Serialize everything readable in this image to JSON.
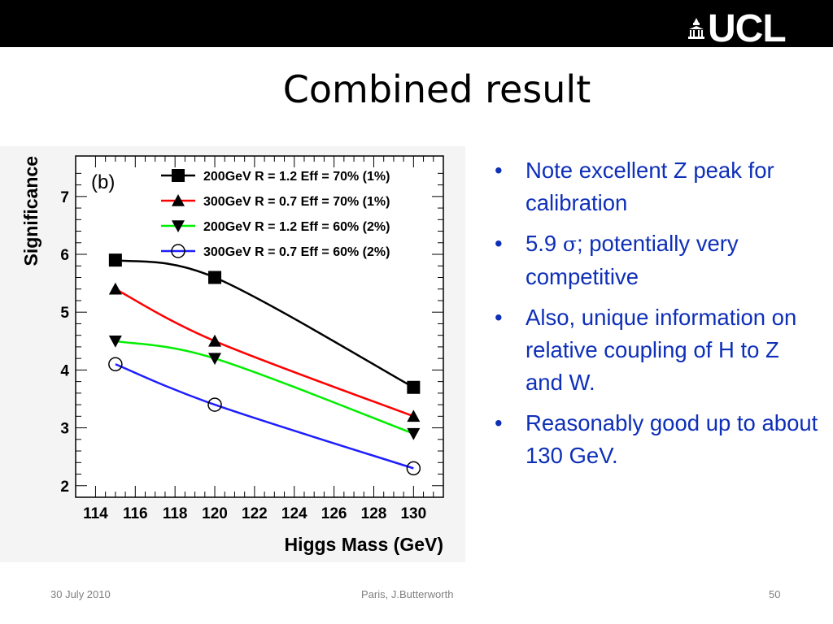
{
  "header": {
    "logo_text": "UCL"
  },
  "slide": {
    "title": "Combined result",
    "bullets": [
      {
        "text": "Note excellent Z peak for calibration"
      },
      {
        "pre": "5.9 ",
        "sym": "σ",
        "post": "; potentially very competitive"
      },
      {
        "text": "Also, unique information on relative coupling of H to Z and W."
      },
      {
        "text": "Reasonably good up to about 130 GeV."
      }
    ],
    "bullet_char": "•"
  },
  "footer": {
    "date": "30 July 2010",
    "author": "Paris, J.Butterworth",
    "page": "50"
  },
  "chart_data": {
    "type": "line",
    "panel_label": "(b)",
    "xlabel": "Higgs Mass (GeV)",
    "ylabel": "Significance",
    "xlim": [
      113,
      131.5
    ],
    "ylim": [
      1.8,
      7.7
    ],
    "xticks": [
      114,
      116,
      118,
      120,
      122,
      124,
      126,
      128,
      130
    ],
    "yticks": [
      2,
      3,
      4,
      5,
      6,
      7
    ],
    "legend_position": "top-right",
    "grid": false,
    "series": [
      {
        "name": "200GeV R = 1.2 Eff = 70% (1%)",
        "color": "#000000",
        "marker": "square",
        "x": [
          115,
          120,
          130
        ],
        "y": [
          5.9,
          5.6,
          3.7
        ]
      },
      {
        "name": "300GeV R = 0.7 Eff = 70% (1%)",
        "color": "#ff0000",
        "marker": "triangle-up",
        "x": [
          115,
          120,
          130
        ],
        "y": [
          5.4,
          4.5,
          3.2
        ]
      },
      {
        "name": "200GeV R = 1.2 Eff = 60% (2%)",
        "color": "#00ee00",
        "marker": "triangle-down",
        "x": [
          115,
          120,
          130
        ],
        "y": [
          4.5,
          4.2,
          2.9
        ]
      },
      {
        "name": "300GeV R = 0.7 Eff = 60% (2%)",
        "color": "#1e1eff",
        "marker": "circle-open",
        "x": [
          115,
          120,
          130
        ],
        "y": [
          4.1,
          3.4,
          2.3
        ]
      }
    ]
  }
}
